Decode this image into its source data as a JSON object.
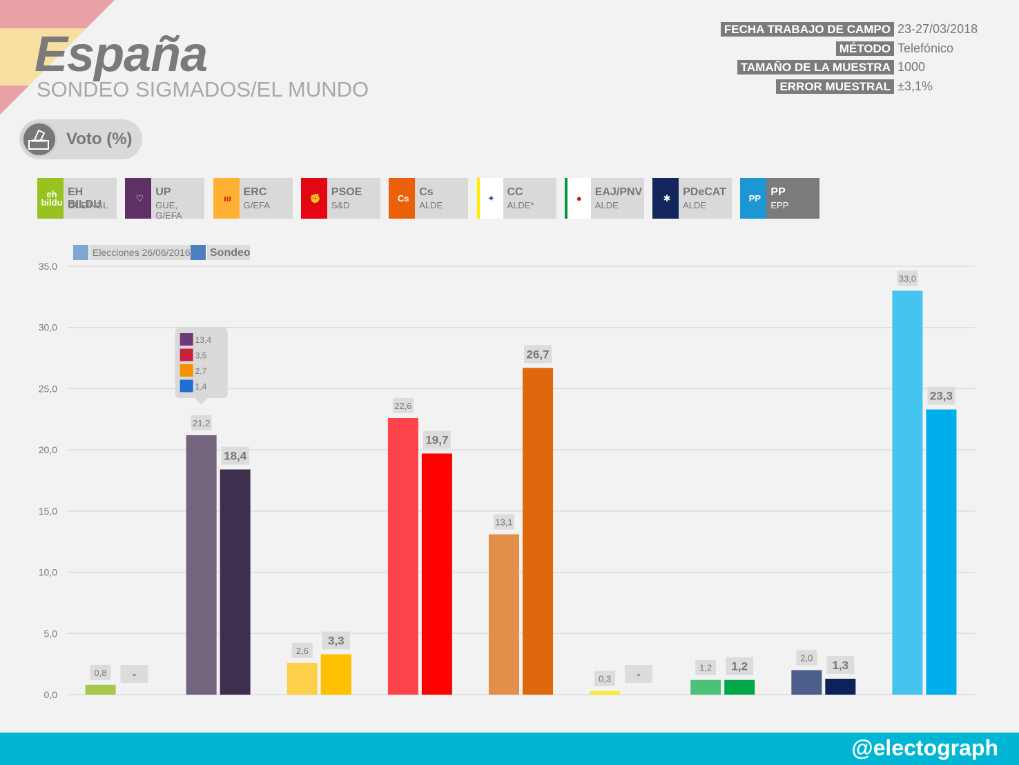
{
  "header": {
    "title": "España",
    "subtitle": "SONDEO SIGMADOS/EL MUNDO"
  },
  "info": [
    {
      "label": "FECHA TRABAJO DE CAMPO",
      "value": "23-27/03/2018"
    },
    {
      "label": "MÉTODO",
      "value": "Telefónico"
    },
    {
      "label": "TAMAÑO DE LA MUESTRA",
      "value": "1000"
    },
    {
      "label": "ERROR MUESTRAL",
      "value": "±3,1%"
    }
  ],
  "voto": {
    "label": "Voto (%)",
    "icon": "ballot-box-icon"
  },
  "parties": [
    {
      "name": "EH BILDU",
      "group": "GUE/NGL",
      "color": "#98c21f",
      "logo_text": "eh bildu",
      "logo_bg": "#98c21f",
      "logo_fg": "#ffffff"
    },
    {
      "name": "UP",
      "group": "GUE, G/EFA",
      "color": "#5e3066",
      "logo_text": "♡",
      "logo_bg": "#5e3066",
      "logo_fg": "#ffffff"
    },
    {
      "name": "ERC",
      "group": "G/EFA",
      "color": "#ffb232",
      "logo_text": "ııı",
      "logo_bg": "#ffb232",
      "logo_fg": "#d4161c"
    },
    {
      "name": "PSOE",
      "group": "S&D",
      "color": "#e30613",
      "logo_text": "✊",
      "logo_bg": "#e30613",
      "logo_fg": "#ffffff"
    },
    {
      "name": "Cs",
      "group": "ALDE",
      "color": "#eb6109",
      "logo_text": "Cs",
      "logo_bg": "#eb6109",
      "logo_fg": "#ffffff"
    },
    {
      "name": "CC",
      "group": "ALDE*",
      "color": "#ffed00",
      "logo_text": "✦",
      "logo_bg": "#ffffff",
      "logo_fg": "#1c5a9c"
    },
    {
      "name": "EAJ/PNV",
      "group": "ALDE",
      "color": "#00953d",
      "logo_text": "●",
      "logo_bg": "#ffffff",
      "logo_fg": "#c4161c"
    },
    {
      "name": "PDeCAT",
      "group": "ALDE",
      "color": "#12265c",
      "logo_text": "✱",
      "logo_bg": "#12265c",
      "logo_fg": "#ffffff"
    },
    {
      "name": "PP",
      "group": "EPP",
      "color": "#1c96d4",
      "logo_text": "PP",
      "logo_bg": "#1c96d4",
      "logo_fg": "#ffffff"
    }
  ],
  "chart_data": {
    "type": "bar",
    "categories": [
      "EH BILDU",
      "UP",
      "ERC",
      "PSOE",
      "Cs",
      "CC",
      "EAJ/PNV",
      "PDeCAT",
      "PP"
    ],
    "series": [
      {
        "name": "Elecciones 26/06/2016",
        "values": [
          0.8,
          21.2,
          2.6,
          22.6,
          13.1,
          0.3,
          1.2,
          2.0,
          33.0
        ],
        "labels": [
          "0,8",
          "21,2",
          "2,6",
          "22,6",
          "13,1",
          "0,3",
          "1,2",
          "2,0",
          "33,0"
        ],
        "colors": [
          "#a5c84a",
          "#73657e",
          "#fed04a",
          "#fd4349",
          "#e28f4a",
          "#f7ed3c",
          "#4cc17a",
          "#4b5f8a",
          "#46c4f0"
        ],
        "legend_color": "#7fa6d1"
      },
      {
        "name": "Sondeo",
        "values": [
          null,
          18.4,
          3.3,
          19.7,
          26.7,
          null,
          1.2,
          1.3,
          23.3
        ],
        "labels": [
          "-",
          "18,4",
          "3,3",
          "19,7",
          "26,7",
          "-",
          "1,2",
          "1,3",
          "23,3"
        ],
        "colors": [
          "#a5c84a",
          "#3f2f4e",
          "#ffc000",
          "#ff0000",
          "#df680c",
          "#f7ed3c",
          "#00a84a",
          "#0d2258",
          "#00aeec"
        ],
        "legend_color": "#4d7fbf"
      }
    ],
    "y_ticks": [
      "0,0",
      "5,0",
      "10,0",
      "15,0",
      "20,0",
      "25,0",
      "30,0",
      "35,0"
    ],
    "ylim": [
      0,
      35
    ],
    "grid": true,
    "legend_position": "top-left",
    "annotation": {
      "category": "UP",
      "items": [
        {
          "value": "13,4",
          "icon": "podemos-icon",
          "icon_color": "#6c3a78"
        },
        {
          "value": "3,5",
          "icon": "en-comu-podem-icon",
          "icon_color": "#c8213b"
        },
        {
          "value": "2,7",
          "icon": "compromis-icon",
          "icon_color": "#f39200"
        },
        {
          "value": "1,4",
          "icon": "en-marea-icon",
          "icon_color": "#1f6fd1"
        }
      ]
    }
  },
  "footer": {
    "handle": "@electograph"
  }
}
